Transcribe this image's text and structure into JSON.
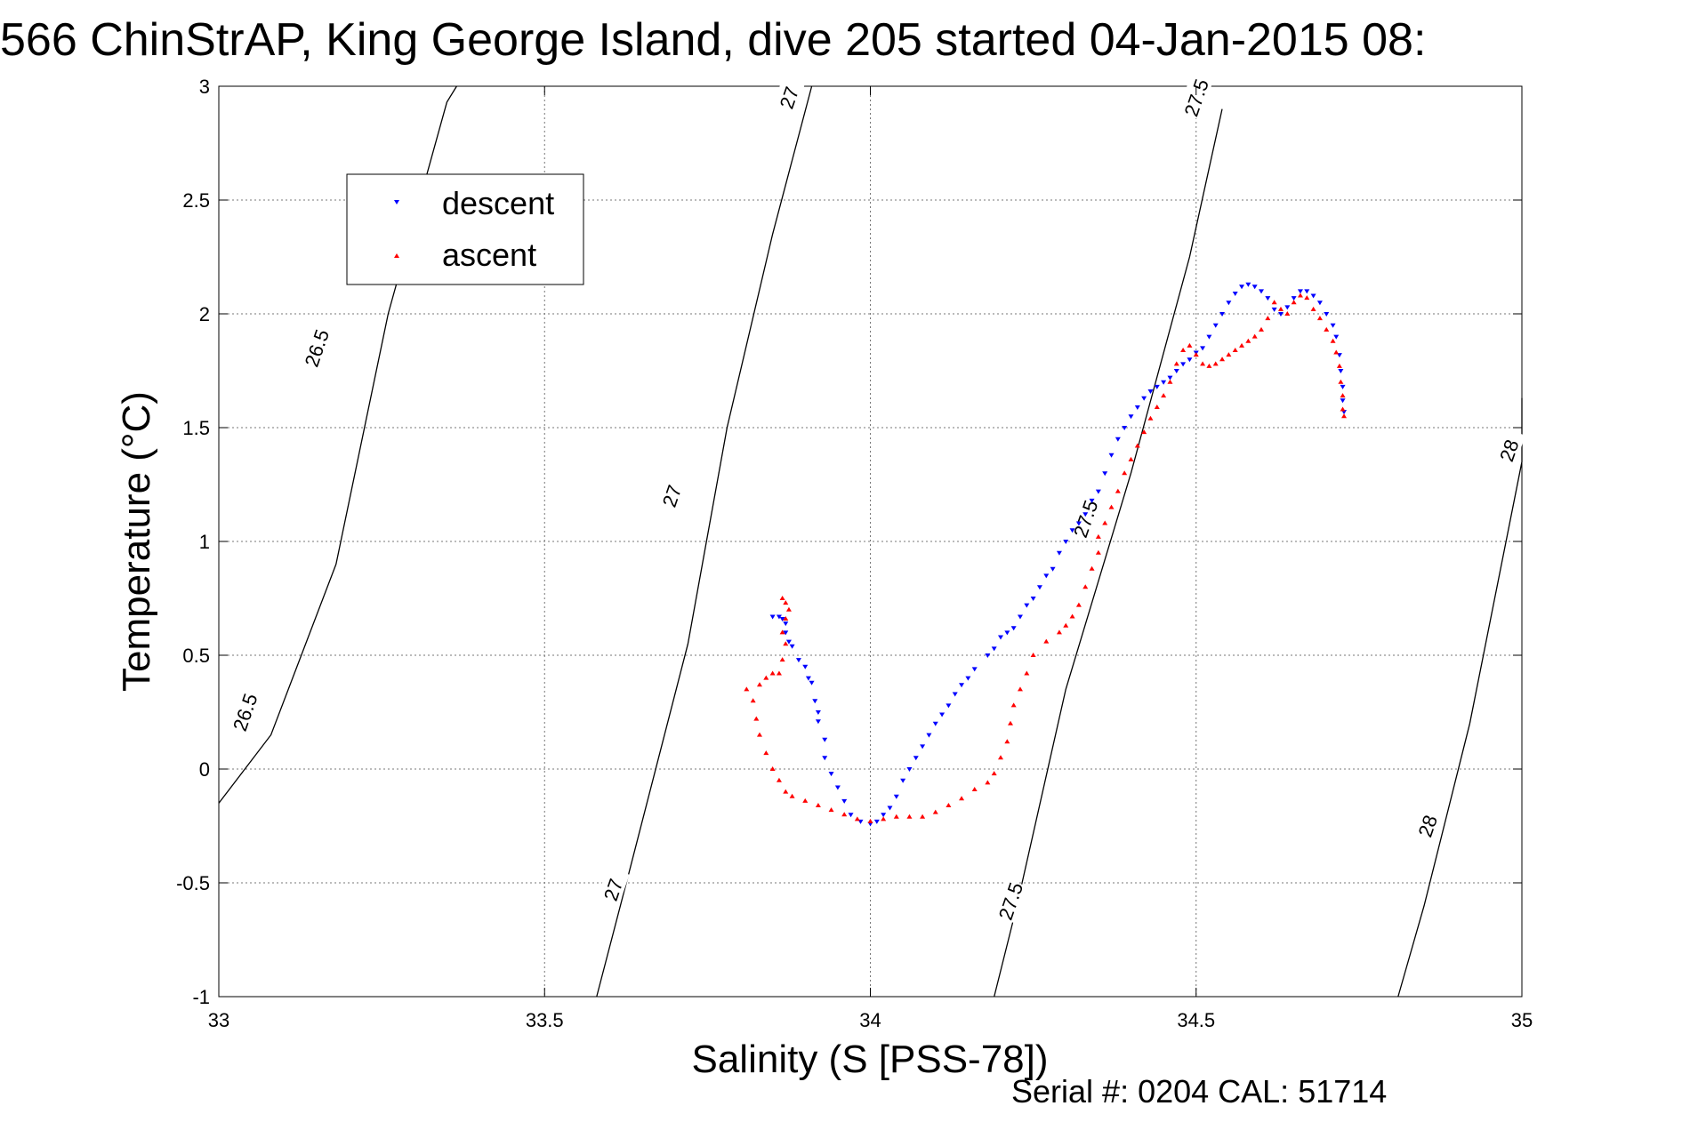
{
  "chart_data": {
    "type": "scatter",
    "title": "566 ChinStrAP, King George Island, dive 205 started 04-Jan-2015 08:",
    "xlabel": "Salinity (S [PSS-78])",
    "ylabel": "Temperature (°C)",
    "xlim": [
      33,
      35
    ],
    "ylim": [
      -1,
      3
    ],
    "x_ticks": [
      "33",
      "33.5",
      "34",
      "34.5",
      "35"
    ],
    "y_ticks": [
      "3",
      "2.5",
      "2",
      "1.5",
      "1",
      "0.5",
      "0",
      "-0.5",
      "-1"
    ],
    "grid": true,
    "legend_placement": "top-left",
    "footer": "Serial #: 0204  CAL: 51714",
    "contours": [
      {
        "label": "26.5",
        "points": [
          [
            33.0,
            -0.15
          ],
          [
            33.08,
            0.15
          ],
          [
            33.18,
            0.9
          ],
          [
            33.26,
            2.0
          ],
          [
            33.35,
            2.93
          ],
          [
            33.365,
            3.0
          ]
        ],
        "label_positions": [
          [
            33.04,
            0.25
          ],
          [
            33.15,
            1.85
          ]
        ]
      },
      {
        "label": "27",
        "points": [
          [
            33.58,
            -1.0
          ],
          [
            33.63,
            -0.45
          ],
          [
            33.72,
            0.55
          ],
          [
            33.78,
            1.5
          ],
          [
            33.85,
            2.35
          ],
          [
            33.91,
            3.0
          ]
        ],
        "label_positions": [
          [
            33.605,
            -0.53
          ],
          [
            33.695,
            1.2
          ],
          [
            33.875,
            2.95
          ]
        ]
      },
      {
        "label": "27.5",
        "points": [
          [
            34.19,
            -1.0
          ],
          [
            34.225,
            -0.6
          ],
          [
            34.3,
            0.35
          ],
          [
            34.4,
            1.3
          ],
          [
            34.49,
            2.25
          ],
          [
            34.54,
            2.9
          ]
        ],
        "label_positions": [
          [
            34.215,
            -0.58
          ],
          [
            34.33,
            1.1
          ],
          [
            34.5,
            2.95
          ]
        ]
      },
      {
        "label": "28",
        "points": [
          [
            34.81,
            -1.0
          ],
          [
            34.85,
            -0.6
          ],
          [
            34.92,
            0.2
          ],
          [
            35.0,
            1.35
          ],
          [
            35.0,
            1.63
          ]
        ],
        "label_positions": [
          [
            34.855,
            -0.25
          ],
          [
            34.98,
            1.4
          ]
        ]
      }
    ],
    "series": [
      {
        "name": "descent",
        "color": "#0000ff",
        "marker": "down-triangle",
        "points": [
          [
            33.85,
            0.67
          ],
          [
            33.86,
            0.67
          ],
          [
            33.865,
            0.66
          ],
          [
            33.87,
            0.64
          ],
          [
            33.87,
            0.6
          ],
          [
            33.875,
            0.56
          ],
          [
            33.88,
            0.54
          ],
          [
            33.89,
            0.48
          ],
          [
            33.9,
            0.45
          ],
          [
            33.905,
            0.4
          ],
          [
            33.91,
            0.38
          ],
          [
            33.915,
            0.3
          ],
          [
            33.92,
            0.25
          ],
          [
            33.92,
            0.21
          ],
          [
            33.93,
            0.13
          ],
          [
            33.93,
            0.05
          ],
          [
            33.94,
            -0.02
          ],
          [
            33.95,
            -0.08
          ],
          [
            33.96,
            -0.14
          ],
          [
            33.97,
            -0.2
          ],
          [
            33.985,
            -0.23
          ],
          [
            34.0,
            -0.24
          ],
          [
            34.01,
            -0.23
          ],
          [
            34.02,
            -0.2
          ],
          [
            34.03,
            -0.17
          ],
          [
            34.04,
            -0.12
          ],
          [
            34.05,
            -0.05
          ],
          [
            34.06,
            0.0
          ],
          [
            34.07,
            0.05
          ],
          [
            34.08,
            0.1
          ],
          [
            34.09,
            0.15
          ],
          [
            34.1,
            0.2
          ],
          [
            34.11,
            0.24
          ],
          [
            34.12,
            0.28
          ],
          [
            34.13,
            0.33
          ],
          [
            34.14,
            0.37
          ],
          [
            34.15,
            0.4
          ],
          [
            34.16,
            0.44
          ],
          [
            34.18,
            0.5
          ],
          [
            34.19,
            0.53
          ],
          [
            34.2,
            0.58
          ],
          [
            34.21,
            0.6
          ],
          [
            34.22,
            0.62
          ],
          [
            34.23,
            0.67
          ],
          [
            34.24,
            0.72
          ],
          [
            34.25,
            0.75
          ],
          [
            34.26,
            0.8
          ],
          [
            34.27,
            0.85
          ],
          [
            34.28,
            0.88
          ],
          [
            34.29,
            0.95
          ],
          [
            34.3,
            1.0
          ],
          [
            34.31,
            1.05
          ],
          [
            34.32,
            1.08
          ],
          [
            34.33,
            1.12
          ],
          [
            34.34,
            1.18
          ],
          [
            34.35,
            1.22
          ],
          [
            34.36,
            1.3
          ],
          [
            34.37,
            1.38
          ],
          [
            34.38,
            1.45
          ],
          [
            34.39,
            1.5
          ],
          [
            34.4,
            1.55
          ],
          [
            34.41,
            1.59
          ],
          [
            34.42,
            1.63
          ],
          [
            34.43,
            1.66
          ],
          [
            34.44,
            1.68
          ],
          [
            34.45,
            1.7
          ],
          [
            34.46,
            1.72
          ],
          [
            34.47,
            1.75
          ],
          [
            34.48,
            1.78
          ],
          [
            34.49,
            1.8
          ],
          [
            34.5,
            1.83
          ],
          [
            34.51,
            1.85
          ],
          [
            34.52,
            1.9
          ],
          [
            34.53,
            1.95
          ],
          [
            34.54,
            2.0
          ],
          [
            34.55,
            2.05
          ],
          [
            34.56,
            2.09
          ],
          [
            34.57,
            2.12
          ],
          [
            34.58,
            2.13
          ],
          [
            34.59,
            2.12
          ],
          [
            34.6,
            2.1
          ],
          [
            34.61,
            2.07
          ],
          [
            34.62,
            2.02
          ],
          [
            34.63,
            2.0
          ],
          [
            34.64,
            2.03
          ],
          [
            34.65,
            2.07
          ],
          [
            34.66,
            2.1
          ],
          [
            34.67,
            2.1
          ],
          [
            34.68,
            2.08
          ],
          [
            34.69,
            2.05
          ],
          [
            34.7,
            2.0
          ],
          [
            34.71,
            1.95
          ],
          [
            34.715,
            1.9
          ],
          [
            34.72,
            1.82
          ],
          [
            34.722,
            1.75
          ],
          [
            34.725,
            1.68
          ],
          [
            34.725,
            1.62
          ],
          [
            34.727,
            1.57
          ]
        ]
      },
      {
        "name": "ascent",
        "color": "#ff0000",
        "marker": "up-triangle",
        "points": [
          [
            33.865,
            0.75
          ],
          [
            33.87,
            0.73
          ],
          [
            33.875,
            0.7
          ],
          [
            33.87,
            0.66
          ],
          [
            33.865,
            0.6
          ],
          [
            33.87,
            0.55
          ],
          [
            33.865,
            0.48
          ],
          [
            33.86,
            0.42
          ],
          [
            33.85,
            0.42
          ],
          [
            33.84,
            0.4
          ],
          [
            33.83,
            0.37
          ],
          [
            33.81,
            0.35
          ],
          [
            33.82,
            0.3
          ],
          [
            33.825,
            0.22
          ],
          [
            33.83,
            0.15
          ],
          [
            33.84,
            0.07
          ],
          [
            33.85,
            0.0
          ],
          [
            33.86,
            -0.05
          ],
          [
            33.87,
            -0.1
          ],
          [
            33.88,
            -0.12
          ],
          [
            33.9,
            -0.14
          ],
          [
            33.92,
            -0.16
          ],
          [
            33.94,
            -0.18
          ],
          [
            33.96,
            -0.2
          ],
          [
            33.98,
            -0.22
          ],
          [
            34.0,
            -0.23
          ],
          [
            34.02,
            -0.22
          ],
          [
            34.04,
            -0.21
          ],
          [
            34.06,
            -0.21
          ],
          [
            34.08,
            -0.21
          ],
          [
            34.1,
            -0.19
          ],
          [
            34.12,
            -0.16
          ],
          [
            34.14,
            -0.13
          ],
          [
            34.16,
            -0.09
          ],
          [
            34.18,
            -0.06
          ],
          [
            34.19,
            -0.02
          ],
          [
            34.2,
            0.05
          ],
          [
            34.21,
            0.12
          ],
          [
            34.215,
            0.2
          ],
          [
            34.22,
            0.28
          ],
          [
            34.23,
            0.35
          ],
          [
            34.24,
            0.42
          ],
          [
            34.25,
            0.5
          ],
          [
            34.27,
            0.56
          ],
          [
            34.29,
            0.6
          ],
          [
            34.3,
            0.63
          ],
          [
            34.31,
            0.67
          ],
          [
            34.32,
            0.72
          ],
          [
            34.33,
            0.8
          ],
          [
            34.34,
            0.88
          ],
          [
            34.35,
            0.95
          ],
          [
            34.35,
            1.02
          ],
          [
            34.36,
            1.08
          ],
          [
            34.37,
            1.15
          ],
          [
            34.38,
            1.22
          ],
          [
            34.39,
            1.3
          ],
          [
            34.4,
            1.36
          ],
          [
            34.41,
            1.42
          ],
          [
            34.42,
            1.48
          ],
          [
            34.43,
            1.54
          ],
          [
            34.44,
            1.59
          ],
          [
            34.45,
            1.64
          ],
          [
            34.46,
            1.7
          ],
          [
            34.47,
            1.78
          ],
          [
            34.48,
            1.84
          ],
          [
            34.49,
            1.86
          ],
          [
            34.5,
            1.82
          ],
          [
            34.51,
            1.78
          ],
          [
            34.52,
            1.77
          ],
          [
            34.53,
            1.78
          ],
          [
            34.54,
            1.8
          ],
          [
            34.55,
            1.82
          ],
          [
            34.56,
            1.84
          ],
          [
            34.57,
            1.86
          ],
          [
            34.58,
            1.88
          ],
          [
            34.59,
            1.9
          ],
          [
            34.6,
            1.93
          ],
          [
            34.61,
            1.98
          ],
          [
            34.62,
            2.05
          ],
          [
            34.63,
            2.02
          ],
          [
            34.64,
            2.0
          ],
          [
            34.65,
            2.05
          ],
          [
            34.66,
            2.08
          ],
          [
            34.67,
            2.07
          ],
          [
            34.68,
            2.02
          ],
          [
            34.69,
            1.98
          ],
          [
            34.7,
            1.93
          ],
          [
            34.71,
            1.88
          ],
          [
            34.715,
            1.83
          ],
          [
            34.72,
            1.77
          ],
          [
            34.722,
            1.7
          ],
          [
            34.725,
            1.64
          ],
          [
            34.725,
            1.58
          ],
          [
            34.727,
            1.55
          ]
        ]
      }
    ]
  }
}
